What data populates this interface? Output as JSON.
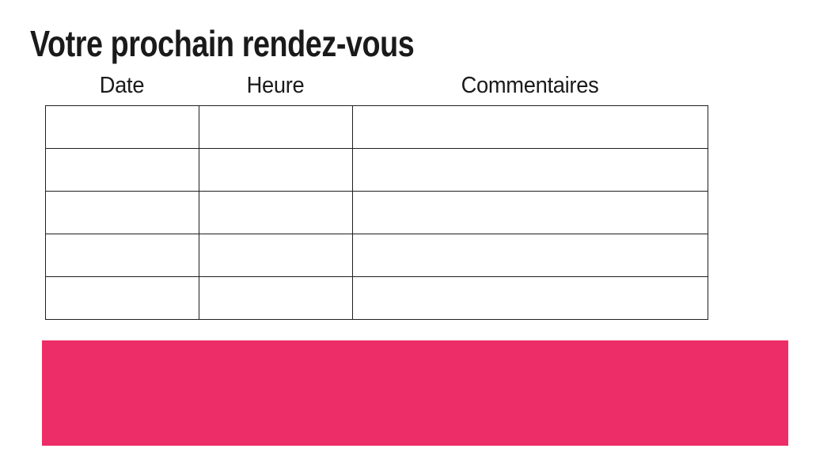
{
  "page": {
    "title": "Votre prochain rendez-vous"
  },
  "table": {
    "columns": [
      {
        "label": "Date"
      },
      {
        "label": "Heure"
      },
      {
        "label": "Commentaires"
      }
    ],
    "rows": [
      [
        "",
        "",
        ""
      ],
      [
        "",
        "",
        ""
      ],
      [
        "",
        "",
        ""
      ],
      [
        "",
        "",
        ""
      ],
      [
        "",
        "",
        ""
      ]
    ]
  },
  "colors": {
    "accent": "#ed2d67",
    "border": "#1f1f1f",
    "text": "#1a1a1a"
  }
}
